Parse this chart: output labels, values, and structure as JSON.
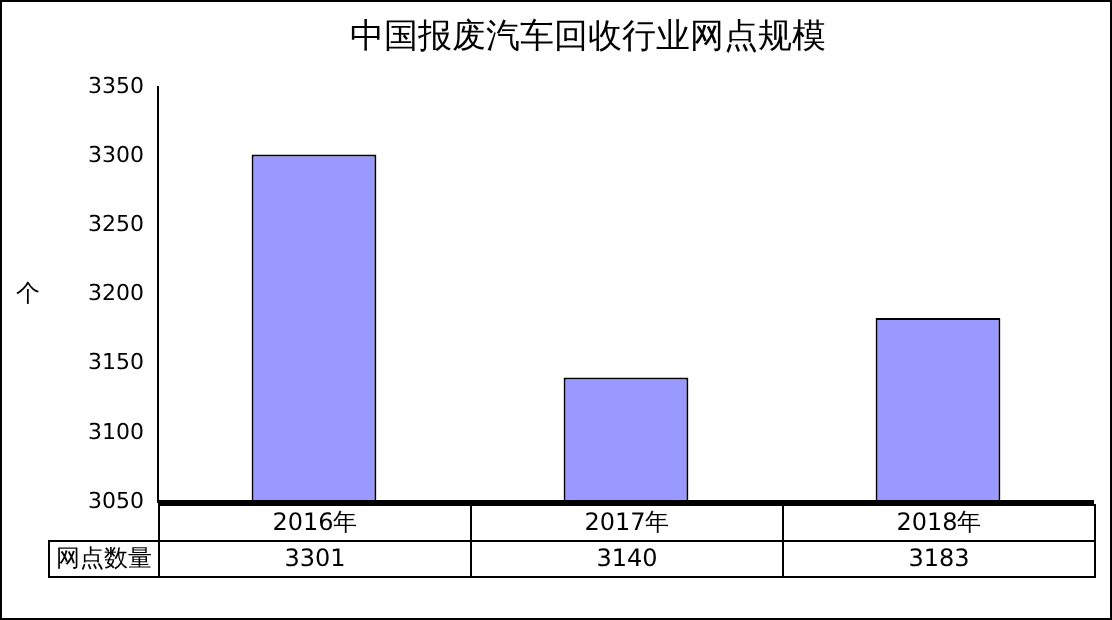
{
  "chart_data": {
    "type": "bar",
    "title": "中国报废汽车回收行业网点规模",
    "ylabel": "个",
    "categories": [
      "2016年",
      "2017年",
      "2018年"
    ],
    "series": [
      {
        "name": "网点数量",
        "color": "#9999ff",
        "values": [
          3301,
          3140,
          3183
        ]
      }
    ],
    "ylim": [
      3050,
      3350
    ],
    "yticks": [
      3050,
      3100,
      3150,
      3200,
      3250,
      3300,
      3350
    ],
    "grid": false,
    "legend": false,
    "data_labels": true
  }
}
